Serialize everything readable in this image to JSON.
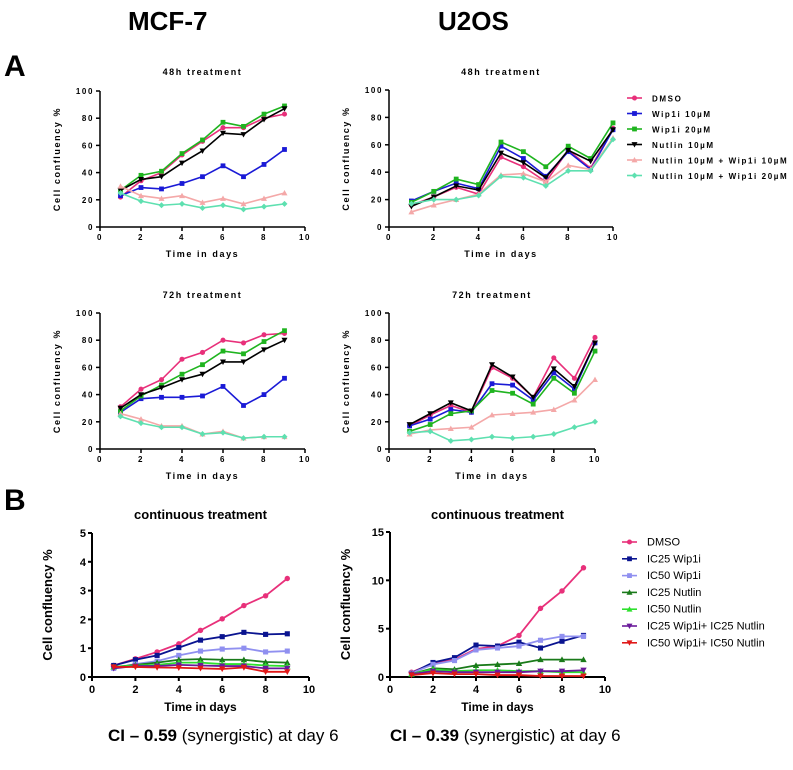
{
  "header": {
    "col1": "MCF-7",
    "col2": "U2OS",
    "panel_a": "A",
    "panel_b": "B"
  },
  "footer": {
    "ci1_bold": "CI – 0.59",
    "ci1_rest": " (synergistic) at day 6",
    "ci2_bold": "CI – 0.39",
    "ci2_rest": " (synergistic) at day 6"
  },
  "chart_data": [
    {
      "type": "line",
      "title": "48h treatment",
      "xlabel": "Time in days",
      "ylabel": "Cell confluency %",
      "xlim": [
        0,
        10
      ],
      "ylim": [
        0,
        100
      ],
      "xticks": [
        0,
        2,
        4,
        6,
        8,
        10
      ],
      "yticks": [
        0,
        20,
        40,
        60,
        80,
        100
      ],
      "x": [
        1,
        2,
        3,
        4,
        5,
        6,
        7,
        8,
        9
      ],
      "series": [
        {
          "name": "DMSO",
          "color": "#e8307a",
          "marker": "circle",
          "values": [
            22,
            34,
            40,
            53,
            63,
            73,
            73,
            80,
            83
          ]
        },
        {
          "name": "Wip1i 10µM",
          "color": "#1a1ad6",
          "marker": "square",
          "values": [
            23,
            29,
            28,
            32,
            37,
            45,
            37,
            46,
            57
          ]
        },
        {
          "name": "Wip1i 20µM",
          "color": "#1fb41f",
          "marker": "square",
          "values": [
            27,
            38,
            41,
            54,
            64,
            77,
            74,
            83,
            89
          ]
        },
        {
          "name": "Nutlin 10µM",
          "color": "#000000",
          "marker": "triangle-down",
          "values": [
            27,
            35,
            37,
            47,
            56,
            69,
            68,
            79,
            87
          ]
        },
        {
          "name": "Nutlin 10µM + Wip1i 10µM",
          "color": "#f4a8a8",
          "marker": "triangle-up",
          "values": [
            30,
            23,
            21,
            23,
            18,
            21,
            17,
            21,
            25
          ]
        },
        {
          "name": "Nutlin 10µM + Wip1i 20µM",
          "color": "#5ee0b0",
          "marker": "diamond",
          "values": [
            25,
            19,
            16,
            17,
            14,
            16,
            13,
            15,
            17
          ]
        }
      ]
    },
    {
      "type": "line",
      "title": "48h treatment",
      "xlabel": "Time in days",
      "ylabel": "Cell confluency %",
      "xlim": [
        0,
        10
      ],
      "ylim": [
        0,
        100
      ],
      "xticks": [
        0,
        2,
        4,
        6,
        8,
        10
      ],
      "yticks": [
        0,
        20,
        40,
        60,
        80,
        100
      ],
      "x": [
        1,
        2,
        3,
        4,
        5,
        6,
        7,
        8,
        9,
        10
      ],
      "legend": "right",
      "series": [
        {
          "name": "DMSO",
          "color": "#e8307a",
          "marker": "circle",
          "values": [
            16,
            22,
            29,
            24,
            51,
            44,
            33,
            56,
            43,
            72
          ]
        },
        {
          "name": "Wip1i 10µM",
          "color": "#1a1ad6",
          "marker": "square",
          "values": [
            19,
            26,
            32,
            28,
            59,
            50,
            37,
            55,
            42,
            71
          ]
        },
        {
          "name": "Wip1i 20µM",
          "color": "#1fb41f",
          "marker": "square",
          "values": [
            18,
            26,
            35,
            31,
            62,
            55,
            44,
            59,
            50,
            76
          ]
        },
        {
          "name": "Nutlin 10µM",
          "color": "#000000",
          "marker": "triangle-down",
          "values": [
            15,
            22,
            30,
            27,
            54,
            47,
            36,
            56,
            48,
            71
          ]
        },
        {
          "name": "Nutlin 10µM + Wip1i 10µM",
          "color": "#f4a8a8",
          "marker": "triangle-up",
          "values": [
            11,
            16,
            20,
            24,
            38,
            39,
            33,
            45,
            42,
            65
          ]
        },
        {
          "name": "Nutlin 10µM + Wip1i 20µM",
          "color": "#5ee0b0",
          "marker": "diamond",
          "values": [
            17,
            20,
            20,
            23,
            37,
            36,
            30,
            41,
            41,
            64
          ]
        }
      ]
    },
    {
      "type": "line",
      "title": "72h treatment",
      "xlabel": "Time in days",
      "ylabel": "Cell confluency %",
      "xlim": [
        0,
        10
      ],
      "ylim": [
        0,
        100
      ],
      "xticks": [
        0,
        2,
        4,
        6,
        8,
        10
      ],
      "yticks": [
        0,
        20,
        40,
        60,
        80,
        100
      ],
      "x": [
        1,
        2,
        3,
        4,
        5,
        6,
        7,
        8,
        9
      ],
      "series": [
        {
          "name": "DMSO",
          "color": "#e8307a",
          "marker": "circle",
          "values": [
            31,
            44,
            51,
            66,
            71,
            80,
            78,
            84,
            85
          ]
        },
        {
          "name": "Wip1i 10µM",
          "color": "#1a1ad6",
          "marker": "square",
          "values": [
            27,
            37,
            38,
            38,
            39,
            46,
            32,
            40,
            52
          ]
        },
        {
          "name": "Wip1i 20µM",
          "color": "#1fb41f",
          "marker": "square",
          "values": [
            28,
            39,
            47,
            55,
            62,
            72,
            70,
            79,
            87
          ]
        },
        {
          "name": "Nutlin 10µM",
          "color": "#000000",
          "marker": "triangle-down",
          "values": [
            30,
            40,
            45,
            51,
            55,
            64,
            64,
            73,
            80
          ]
        },
        {
          "name": "Nutlin 10µM + Wip1i 10µM",
          "color": "#f4a8a8",
          "marker": "triangle-up",
          "values": [
            26,
            22,
            17,
            17,
            11,
            13,
            8,
            9,
            9
          ]
        },
        {
          "name": "Nutlin 10µM + Wip1i 20µM",
          "color": "#5ee0b0",
          "marker": "diamond",
          "values": [
            24,
            19,
            16,
            16,
            11,
            12,
            8,
            9,
            9
          ]
        }
      ]
    },
    {
      "type": "line",
      "title": "72h treatment",
      "xlabel": "Time in days",
      "ylabel": "Cell confluency %",
      "xlim": [
        0,
        10
      ],
      "ylim": [
        0,
        100
      ],
      "xticks": [
        0,
        2,
        4,
        6,
        8,
        10
      ],
      "yticks": [
        0,
        20,
        40,
        60,
        80,
        100
      ],
      "x": [
        1,
        2,
        3,
        4,
        5,
        6,
        7,
        8,
        9,
        10
      ],
      "series": [
        {
          "name": "DMSO",
          "color": "#e8307a",
          "marker": "circle",
          "values": [
            17,
            25,
            32,
            27,
            60,
            52,
            38,
            67,
            52,
            82
          ]
        },
        {
          "name": "Wip1i 10µM",
          "color": "#1a1ad6",
          "marker": "square",
          "values": [
            17,
            22,
            29,
            27,
            48,
            47,
            36,
            56,
            44,
            78
          ]
        },
        {
          "name": "Wip1i 20µM",
          "color": "#1fb41f",
          "marker": "square",
          "values": [
            13,
            18,
            26,
            28,
            43,
            41,
            33,
            52,
            41,
            72
          ]
        },
        {
          "name": "Nutlin 10µM",
          "color": "#000000",
          "marker": "triangle-down",
          "values": [
            18,
            26,
            34,
            28,
            62,
            53,
            38,
            59,
            46,
            78
          ]
        },
        {
          "name": "Nutlin 10µM + Wip1i 10µM",
          "color": "#f4a8a8",
          "marker": "triangle-up",
          "values": [
            11,
            14,
            15,
            16,
            25,
            26,
            27,
            29,
            36,
            51
          ]
        },
        {
          "name": "Nutlin 10µM + Wip1i 20µM",
          "color": "#5ee0b0",
          "marker": "diamond",
          "values": [
            12,
            13,
            6,
            7,
            9,
            8,
            9,
            11,
            16,
            20
          ]
        }
      ]
    },
    {
      "type": "line",
      "title": "continuous treatment",
      "xlabel": "Time in days",
      "ylabel": "Cell confluency %",
      "xlim": [
        0,
        10
      ],
      "ylim": [
        0,
        5
      ],
      "xticks": [
        0,
        2,
        4,
        6,
        8,
        10
      ],
      "yticks": [
        0,
        1,
        2,
        3,
        4,
        5
      ],
      "x": [
        1,
        2,
        3,
        4,
        5,
        6,
        7,
        8,
        9
      ],
      "series": [
        {
          "name": "DMSO",
          "color": "#e8307a",
          "marker": "circle",
          "values": [
            0.4,
            0.63,
            0.87,
            1.15,
            1.62,
            2.02,
            2.48,
            2.82,
            3.42
          ]
        },
        {
          "name": "IC25 Wip1i",
          "color": "#0a1490",
          "marker": "square",
          "values": [
            0.4,
            0.6,
            0.75,
            1.02,
            1.28,
            1.4,
            1.55,
            1.48,
            1.5
          ]
        },
        {
          "name": "IC50 Wip1i",
          "color": "#9090f0",
          "marker": "square",
          "values": [
            0.3,
            0.45,
            0.55,
            0.75,
            0.9,
            0.97,
            1.0,
            0.87,
            0.9
          ]
        },
        {
          "name": "IC25 Nutlin",
          "color": "#1a7a1a",
          "marker": "triangle-up",
          "values": [
            0.35,
            0.42,
            0.5,
            0.6,
            0.62,
            0.6,
            0.6,
            0.52,
            0.5
          ]
        },
        {
          "name": "IC50 Nutlin",
          "color": "#2ee02e",
          "marker": "triangle-up",
          "values": [
            0.35,
            0.4,
            0.42,
            0.5,
            0.5,
            0.45,
            0.45,
            0.4,
            0.38
          ]
        },
        {
          "name": "IC25 Wip1i+ IC25 Nutlin",
          "color": "#6a1a9a",
          "marker": "triangle-down",
          "values": [
            0.3,
            0.38,
            0.38,
            0.42,
            0.4,
            0.38,
            0.38,
            0.3,
            0.3
          ]
        },
        {
          "name": "IC50 Wip1i+ IC50 Nutlin",
          "color": "#e01818",
          "marker": "triangle-down",
          "values": [
            0.35,
            0.35,
            0.33,
            0.32,
            0.3,
            0.28,
            0.33,
            0.18,
            0.18
          ]
        }
      ]
    },
    {
      "type": "line",
      "title": "continuous treatment",
      "xlabel": "Time in days",
      "ylabel": "Cell confluency %",
      "xlim": [
        0,
        10
      ],
      "ylim": [
        0,
        15
      ],
      "xticks": [
        0,
        2,
        4,
        6,
        8,
        10
      ],
      "yticks": [
        0,
        5,
        10,
        15
      ],
      "x": [
        1,
        2,
        3,
        4,
        5,
        6,
        7,
        8,
        9
      ],
      "legend": "right",
      "series": [
        {
          "name": "DMSO",
          "color": "#e8307a",
          "marker": "circle",
          "values": [
            0.5,
            1.4,
            1.8,
            2.9,
            3.2,
            4.3,
            7.1,
            8.9,
            11.3
          ]
        },
        {
          "name": "IC25 Wip1i",
          "color": "#0a1490",
          "marker": "square",
          "values": [
            0.4,
            1.5,
            2.0,
            3.3,
            3.2,
            3.6,
            3.0,
            3.7,
            4.3
          ]
        },
        {
          "name": "IC50 Wip1i",
          "color": "#9090f0",
          "marker": "square",
          "values": [
            0.4,
            1.3,
            1.7,
            2.8,
            3.0,
            3.2,
            3.8,
            4.2,
            4.2
          ]
        },
        {
          "name": "IC25 Nutlin",
          "color": "#1a7a1a",
          "marker": "triangle-up",
          "values": [
            0.3,
            0.9,
            0.8,
            1.2,
            1.3,
            1.4,
            1.8,
            1.8,
            1.8
          ]
        },
        {
          "name": "IC50 Nutlin",
          "color": "#2ee02e",
          "marker": "triangle-up",
          "values": [
            0.3,
            0.8,
            0.6,
            0.7,
            0.7,
            0.6,
            0.6,
            0.5,
            0.5
          ]
        },
        {
          "name": "IC25 Wip1i+ IC25 Nutlin",
          "color": "#6a1a9a",
          "marker": "triangle-down",
          "values": [
            0.3,
            0.6,
            0.5,
            0.5,
            0.5,
            0.5,
            0.6,
            0.6,
            0.7
          ]
        },
        {
          "name": "IC50 Wip1i+ IC50 Nutlin",
          "color": "#e01818",
          "marker": "triangle-down",
          "values": [
            0.2,
            0.4,
            0.3,
            0.3,
            0.2,
            0.2,
            0.1,
            0.1,
            0.1
          ]
        }
      ]
    }
  ]
}
